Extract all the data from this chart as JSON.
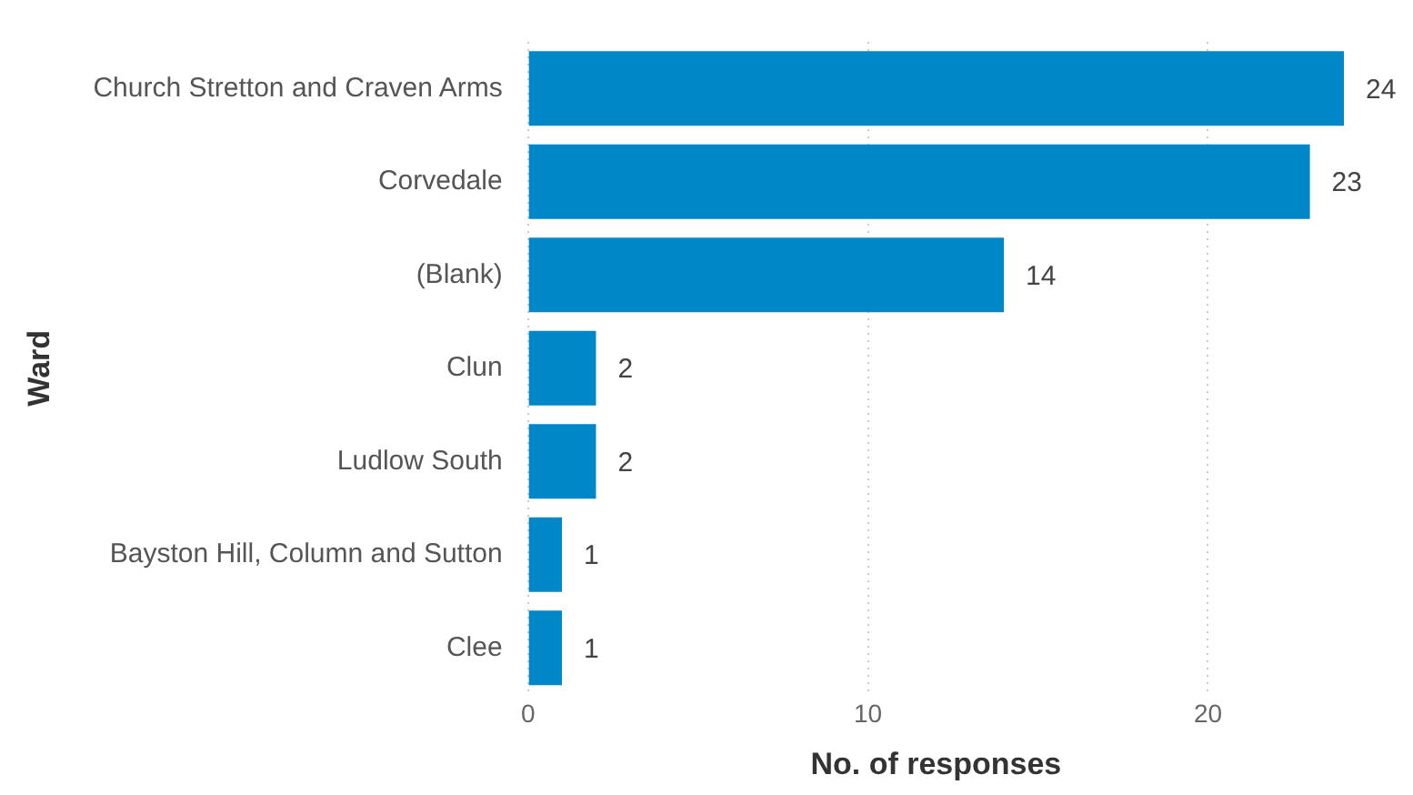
{
  "chart_data": {
    "type": "bar",
    "orientation": "horizontal",
    "categories": [
      "Church Stretton and Craven Arms",
      "Corvedale",
      "(Blank)",
      "Clun",
      "Ludlow South",
      "Bayston Hill, Column and Sutton",
      "Clee"
    ],
    "values": [
      24,
      23,
      14,
      2,
      2,
      1,
      1
    ],
    "color": "#0087c8",
    "xlim": [
      0,
      24
    ],
    "xticks": [
      0,
      10,
      20
    ],
    "xlabel": "No. of responses",
    "ylabel": "Ward",
    "grid": "x",
    "data_labels": true,
    "legend": false
  }
}
